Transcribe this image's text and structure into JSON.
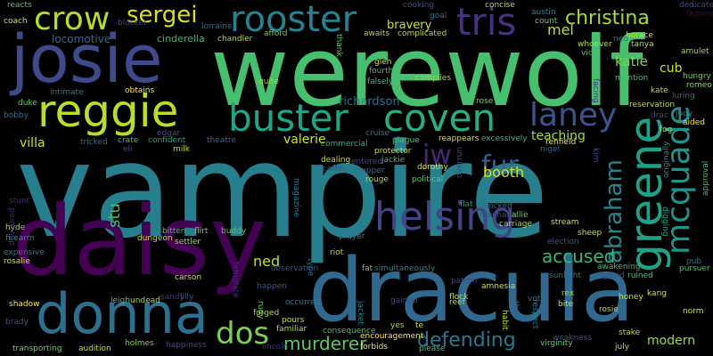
{
  "palette": [
    "#440154",
    "#46327e",
    "#365c8d",
    "#277f8e",
    "#1fa187",
    "#4ac16d",
    "#a0da39",
    "#fde725"
  ],
  "words_big": [
    "vampire",
    "werewolf",
    "dracula",
    "daisy",
    "josie",
    "donna",
    "reggie",
    "helsing",
    "coven",
    "buster",
    "rooster",
    "crow",
    "greene",
    "mcquade",
    "tris",
    "laney",
    "abraham",
    "fur",
    "jw",
    "dos",
    "defending",
    "murderer",
    "sergei",
    "christina",
    "mel",
    "katie",
    "stu",
    "accused",
    "booth",
    "ned",
    "modern",
    "valerie",
    "teaching",
    "locomotive",
    "cinderella",
    "cub",
    "villa",
    "bravery",
    "richardson"
  ],
  "words_small": [
    "reacts",
    "coach",
    "hyde",
    "firearm",
    "rosalie",
    "expensive",
    "forged",
    "stunt",
    "devoured",
    "shadow",
    "brady",
    "bobby",
    "duke",
    "intimate",
    "obtains",
    "edgar",
    "lorraine",
    "blocker",
    "chandler",
    "afford",
    "thank",
    "glen",
    "fourth",
    "falsely",
    "complies",
    "cooking",
    "goal",
    "concise",
    "austin",
    "count",
    "dedicated",
    "fictional",
    "horace",
    "tanya",
    "amulet",
    "hungry",
    "romeo",
    "whoever",
    "vic",
    "neo",
    "kate",
    "facing",
    "mention",
    "luring",
    "reservation",
    "drac",
    "jody",
    "aided",
    "fog",
    "renfield",
    "nigel",
    "reappears",
    "excessively",
    "plague",
    "cruise",
    "rose",
    "entered",
    "protector",
    "jackie",
    "dorothy",
    "political",
    "rouge",
    "trapper",
    "coffin",
    "dealing",
    "magazine",
    "prayer",
    "riot",
    "dungeon",
    "settler",
    "buddy",
    "bitten",
    "flirt",
    "milk",
    "crate",
    "confident",
    "tricked",
    "theatre",
    "commercial",
    "carriage",
    "mechanic",
    "allie",
    "blocked",
    "flat",
    "stream",
    "election",
    "sheep",
    "digging",
    "approval",
    "awakening",
    "hybrid",
    "ruined",
    "sunlight",
    "pursuer",
    "kang",
    "pub",
    "honey",
    "bite",
    "rex",
    "vote",
    "rosie",
    "stake",
    "weakness",
    "virginity",
    "july",
    "norm",
    "habit",
    "theo",
    "patron",
    "amnesia",
    "reef",
    "flock",
    "fat",
    "simultaneously",
    "gained",
    "yes",
    "te",
    "encouragement",
    "consequence",
    "forbids",
    "please",
    "jacket",
    "familiar",
    "pours",
    "occurred",
    "happen",
    "observation",
    "rudy",
    "template",
    "carson",
    "leigh",
    "undead",
    "sandy",
    "lilly",
    "holmes",
    "happiness",
    "lincoln",
    "audition",
    "transporting",
    "type",
    "originally",
    "overrun",
    "respect",
    "kim",
    "eli",
    "complicated",
    "awaits",
    "quite",
    "flower",
    "murdered",
    "tiny",
    "brave",
    "nurse",
    "mute"
  ],
  "icons": [
    "none"
  ]
}
